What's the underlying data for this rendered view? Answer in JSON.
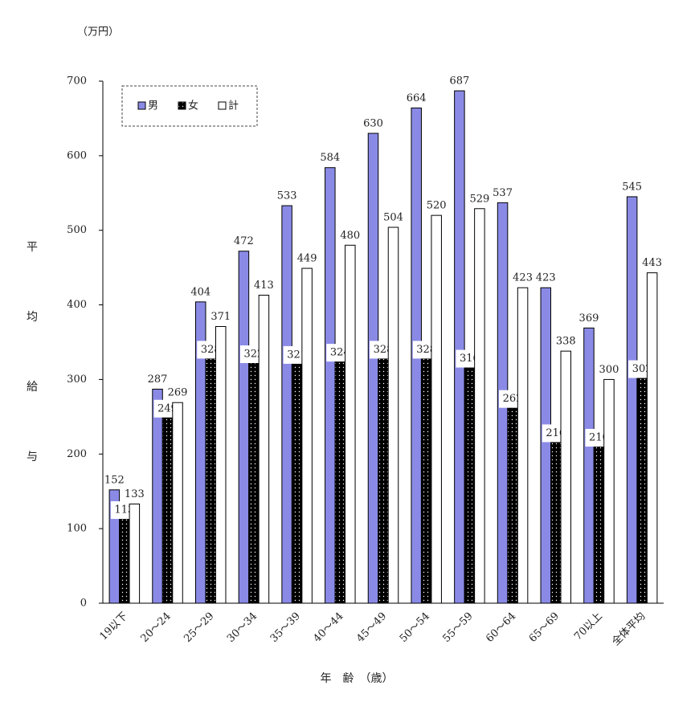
{
  "chart_data": {
    "type": "bar",
    "unit_label": "（万円）",
    "y_label": "平均給与",
    "x_label": "年　齢　（歳）",
    "categories": [
      "19以下",
      "20～24",
      "25～29",
      "30～34",
      "35～39",
      "40～44",
      "45～49",
      "50～54",
      "55～59",
      "60～64",
      "65～69",
      "70以上",
      "全体平均"
    ],
    "series": [
      {
        "name": "男",
        "color": "#8a8ae6",
        "values": [
          152,
          287,
          404,
          472,
          533,
          584,
          630,
          664,
          687,
          537,
          423,
          369,
          545
        ]
      },
      {
        "name": "女",
        "color": "#000000",
        "pattern": "dots",
        "values": [
          113,
          249,
          328,
          322,
          321,
          324,
          328,
          328,
          316,
          262,
          216,
          210,
          302
        ]
      },
      {
        "name": "計",
        "color": "#ffffff",
        "values": [
          133,
          269,
          371,
          413,
          449,
          480,
          504,
          520,
          529,
          423,
          338,
          300,
          443
        ]
      }
    ],
    "ylim": [
      0,
      700
    ],
    "yticks": [
      0,
      100,
      200,
      300,
      400,
      500,
      600,
      700
    ],
    "legend": "top-left"
  }
}
